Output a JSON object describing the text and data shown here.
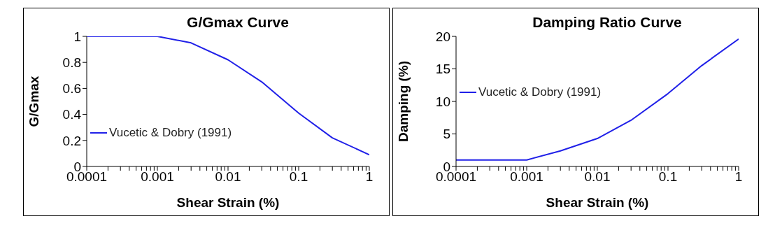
{
  "chart_data": [
    {
      "type": "line",
      "title": "G/Gmax Curve",
      "xlabel": "Shear Strain (%)",
      "ylabel": "G/Gmax",
      "log": "x",
      "x": [
        0.0001,
        0.001,
        0.003,
        0.01,
        0.03,
        0.1,
        0.3,
        1
      ],
      "series": [
        {
          "name": "Vucetic & Dobry (1991)",
          "color": "#2020e8",
          "values": [
            1,
            1,
            0.95,
            0.82,
            0.65,
            0.41,
            0.22,
            0.09
          ]
        }
      ],
      "xlim": [
        0.0001,
        1
      ],
      "xticks": [
        0.0001,
        {
          "value": 0.0002,
          "label": null
        },
        {
          "value": 0.0003,
          "label": null
        },
        {
          "value": 0.0004,
          "label": null
        },
        {
          "value": 0.0005,
          "label": null
        },
        {
          "value": 0.0006,
          "label": null
        },
        {
          "value": 0.0007,
          "label": null
        },
        {
          "value": 0.0008,
          "label": null
        },
        {
          "value": 0.0009,
          "label": null
        },
        0.001,
        {
          "value": 0.002,
          "label": null
        },
        {
          "value": 0.003,
          "label": null
        },
        {
          "value": 0.004,
          "label": null
        },
        {
          "value": 0.005,
          "label": null
        },
        {
          "value": 0.006,
          "label": null
        },
        {
          "value": 0.007,
          "label": null
        },
        {
          "value": 0.008,
          "label": null
        },
        {
          "value": 0.009,
          "label": null
        },
        0.01,
        {
          "value": 0.02,
          "label": null
        },
        {
          "value": 0.03,
          "label": null
        },
        {
          "value": 0.04,
          "label": null
        },
        {
          "value": 0.05,
          "label": null
        },
        {
          "value": 0.06,
          "label": null
        },
        {
          "value": 0.07,
          "label": null
        },
        {
          "value": 0.08,
          "label": null
        },
        {
          "value": 0.09,
          "label": null
        },
        0.1,
        {
          "value": 0.2,
          "label": null
        },
        {
          "value": 0.3,
          "label": null
        },
        {
          "value": 0.4,
          "label": null
        },
        {
          "value": 0.5,
          "label": null
        },
        {
          "value": 0.6,
          "label": null
        },
        {
          "value": 0.7,
          "label": null
        },
        {
          "value": 0.8,
          "label": null
        },
        {
          "value": 0.9,
          "label": null
        },
        1
      ],
      "ylim": [
        0,
        1
      ],
      "yticks": [
        0,
        0.2,
        0.4,
        0.6,
        0.8,
        1
      ],
      "grid": false,
      "legend": "bottom left",
      "marker": "none",
      "line_style": "solid"
    },
    {
      "type": "line",
      "title": "Damping Ratio Curve",
      "xlabel": "Shear Strain (%)",
      "ylabel": "Damping (%)",
      "log": "x",
      "x": [
        0.0001,
        0.001,
        0.003,
        0.01,
        0.03,
        0.1,
        0.3,
        1
      ],
      "series": [
        {
          "name": "Vucetic & Dobry (1991)",
          "color": "#2020e8",
          "values": [
            1,
            1,
            2.4,
            4.3,
            7.1,
            11.2,
            15.5,
            19.6
          ]
        }
      ],
      "xlim": [
        0.0001,
        1
      ],
      "xticks": [
        0.0001,
        {
          "value": 0.0002,
          "label": null
        },
        {
          "value": 0.0003,
          "label": null
        },
        {
          "value": 0.0004,
          "label": null
        },
        {
          "value": 0.0005,
          "label": null
        },
        {
          "value": 0.0006,
          "label": null
        },
        {
          "value": 0.0007,
          "label": null
        },
        {
          "value": 0.0008,
          "label": null
        },
        {
          "value": 0.0009,
          "label": null
        },
        0.001,
        {
          "value": 0.002,
          "label": null
        },
        {
          "value": 0.003,
          "label": null
        },
        {
          "value": 0.004,
          "label": null
        },
        {
          "value": 0.005,
          "label": null
        },
        {
          "value": 0.006,
          "label": null
        },
        {
          "value": 0.007,
          "label": null
        },
        {
          "value": 0.008,
          "label": null
        },
        {
          "value": 0.009,
          "label": null
        },
        0.01,
        {
          "value": 0.02,
          "label": null
        },
        {
          "value": 0.03,
          "label": null
        },
        {
          "value": 0.04,
          "label": null
        },
        {
          "value": 0.05,
          "label": null
        },
        {
          "value": 0.06,
          "label": null
        },
        {
          "value": 0.07,
          "label": null
        },
        {
          "value": 0.08,
          "label": null
        },
        {
          "value": 0.09,
          "label": null
        },
        0.1,
        {
          "value": 0.2,
          "label": null
        },
        {
          "value": 0.3,
          "label": null
        },
        {
          "value": 0.4,
          "label": null
        },
        {
          "value": 0.5,
          "label": null
        },
        {
          "value": 0.6,
          "label": null
        },
        {
          "value": 0.7,
          "label": null
        },
        {
          "value": 0.8,
          "label": null
        },
        {
          "value": 0.9,
          "label": null
        },
        1
      ],
      "ylim": [
        0,
        20
      ],
      "yticks": [
        0,
        5,
        10,
        15,
        20
      ],
      "grid": false,
      "legend": "left",
      "marker": "none",
      "line_style": "solid"
    }
  ]
}
